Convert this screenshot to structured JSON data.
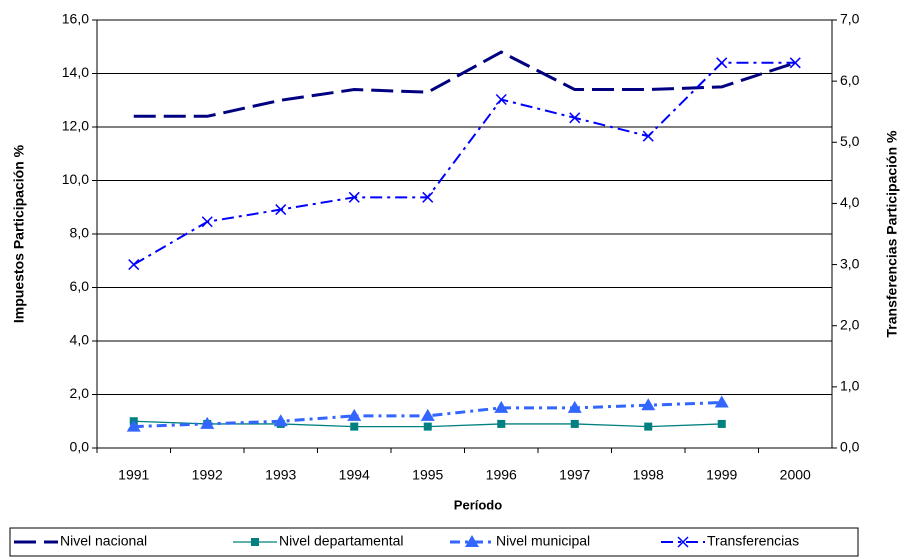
{
  "chart_data": {
    "type": "line",
    "x_label": "Período",
    "y_label": "Impuestos Participación %",
    "y2_label": "Transferencias Participación %",
    "categories": [
      "1991",
      "1992",
      "1993",
      "1994",
      "1995",
      "1996",
      "1997",
      "1998",
      "1999",
      "2000"
    ],
    "series": [
      {
        "name": "Nivel nacional",
        "color": "#000080",
        "values": [
          12.4,
          12.4,
          13.0,
          13.4,
          13.3,
          14.8,
          13.4,
          13.4,
          13.5,
          14.4
        ]
      },
      {
        "name": "Nivel departamental",
        "color": "#008080",
        "values": [
          1.0,
          0.9,
          0.9,
          0.8,
          0.8,
          0.9,
          0.9,
          0.8,
          0.9,
          null
        ]
      },
      {
        "name": "Nivel municipal",
        "color": "#3366ff",
        "values": [
          0.8,
          0.9,
          1.0,
          1.2,
          1.2,
          1.5,
          1.5,
          1.6,
          1.7,
          null
        ]
      },
      {
        "name": "Transferencias",
        "color": "#0000ff",
        "axis": "y2",
        "values": [
          3.0,
          3.7,
          3.9,
          4.1,
          4.1,
          5.7,
          5.4,
          5.1,
          6.3,
          6.3
        ]
      }
    ],
    "ylim": [
      0,
      16
    ],
    "yticks": [
      {
        "value": 0,
        "label": "0,0"
      },
      {
        "value": 2,
        "label": "2,0"
      },
      {
        "value": 4,
        "label": "4,0"
      },
      {
        "value": 6,
        "label": "6,0"
      },
      {
        "value": 8,
        "label": "8,0"
      },
      {
        "value": 10,
        "label": "10,0"
      },
      {
        "value": 12,
        "label": "12,0"
      },
      {
        "value": 14,
        "label": "14,0"
      },
      {
        "value": 16,
        "label": "16,0"
      }
    ],
    "y2lim": [
      0,
      7
    ],
    "y2ticks": [
      {
        "value": 0,
        "label": "0,0"
      },
      {
        "value": 1,
        "label": "1,0"
      },
      {
        "value": 2,
        "label": "2,0"
      },
      {
        "value": 3,
        "label": "3,0"
      },
      {
        "value": 4,
        "label": "4,0"
      },
      {
        "value": 5,
        "label": "5,0"
      },
      {
        "value": 6,
        "label": "6,0"
      },
      {
        "value": 7,
        "label": "7,0"
      }
    ],
    "grid": true
  }
}
